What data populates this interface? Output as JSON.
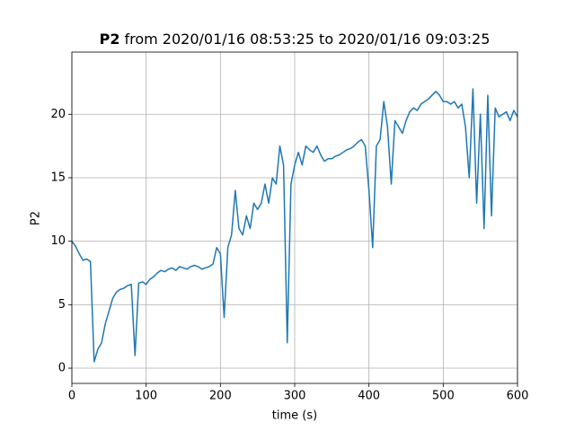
{
  "chart_data": {
    "type": "line",
    "title": {
      "bold": "P2",
      "rest": "from 2020/01/16 08:53:25 to 2020/01/16 09:03:25"
    },
    "xlabel": "time (s)",
    "ylabel": "P2",
    "x": [
      0,
      5,
      10,
      15,
      20,
      25,
      30,
      35,
      40,
      45,
      50,
      55,
      60,
      65,
      70,
      75,
      80,
      85,
      90,
      95,
      100,
      105,
      110,
      115,
      120,
      125,
      130,
      135,
      140,
      145,
      150,
      155,
      160,
      165,
      170,
      175,
      180,
      185,
      190,
      195,
      200,
      205,
      210,
      215,
      220,
      225,
      230,
      235,
      240,
      245,
      250,
      255,
      260,
      265,
      270,
      275,
      280,
      285,
      290,
      295,
      300,
      305,
      310,
      315,
      320,
      325,
      330,
      335,
      340,
      345,
      350,
      355,
      360,
      365,
      370,
      375,
      380,
      385,
      390,
      395,
      400,
      405,
      410,
      415,
      420,
      425,
      430,
      435,
      440,
      445,
      450,
      455,
      460,
      465,
      470,
      475,
      480,
      485,
      490,
      495,
      500,
      505,
      510,
      515,
      520,
      525,
      530,
      535,
      540,
      545,
      550,
      555,
      560,
      565,
      570,
      575,
      580,
      585,
      590,
      595,
      600
    ],
    "values": [
      10,
      9.6,
      9.0,
      8.5,
      8.6,
      8.4,
      0.5,
      1.5,
      2.0,
      3.5,
      4.5,
      5.5,
      6.0,
      6.2,
      6.3,
      6.5,
      6.6,
      1.0,
      6.7,
      6.8,
      6.6,
      7.0,
      7.2,
      7.5,
      7.7,
      7.6,
      7.8,
      7.9,
      7.7,
      8.0,
      7.9,
      7.8,
      8.0,
      8.1,
      8.0,
      7.8,
      7.9,
      8.0,
      8.2,
      9.5,
      9.0,
      4.0,
      9.5,
      10.5,
      14.0,
      11.0,
      10.5,
      12.0,
      11.0,
      13.0,
      12.5,
      13.0,
      14.5,
      13.0,
      15.0,
      14.5,
      17.5,
      16.0,
      2.0,
      14.5,
      16.0,
      17.0,
      16.0,
      17.5,
      17.2,
      17.0,
      17.5,
      16.8,
      16.3,
      16.5,
      16.5,
      16.7,
      16.8,
      17.0,
      17.2,
      17.3,
      17.5,
      17.8,
      18.0,
      17.5,
      14.0,
      9.5,
      17.5,
      18.0,
      21.0,
      19.0,
      14.5,
      19.5,
      19.0,
      18.5,
      19.5,
      20.2,
      20.5,
      20.3,
      20.8,
      21.0,
      21.2,
      21.5,
      21.8,
      21.5,
      21.0,
      21.0,
      20.8,
      21.0,
      20.5,
      20.8,
      19.0,
      15.0,
      22.0,
      13.0,
      20.0,
      11.0,
      21.5,
      12.0,
      20.5,
      19.8,
      20.0,
      20.2,
      19.5,
      20.3,
      19.8
    ],
    "color": "#1f77b4",
    "xlim": [
      0,
      600
    ],
    "xticks": [
      0,
      100,
      200,
      300,
      400,
      500,
      600
    ],
    "ylim": [
      -1.2,
      24.9
    ],
    "yticks": [
      0,
      5,
      10,
      15,
      20
    ],
    "grid": true
  }
}
